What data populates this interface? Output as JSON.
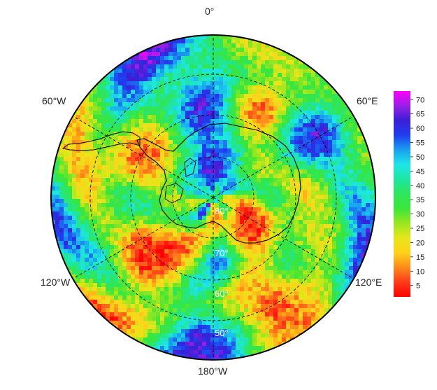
{
  "map": {
    "projection": "south-polar-stereographic",
    "longitude_labels": {
      "top": "0°",
      "upper_left": "60°W",
      "upper_right": "60°E",
      "lower_left": "120°W",
      "lower_right": "120°E",
      "bottom": "180°W"
    },
    "latitude_labels": [
      "80°",
      "70°",
      "60°",
      "50°"
    ],
    "graticule_latitudes": [
      80,
      70,
      60,
      50
    ],
    "graticule_longitudes_deg": [
      0,
      60,
      120,
      180,
      240,
      300
    ],
    "graticule_style": "dashed"
  },
  "colorbar": {
    "ticks": [
      "70",
      "65",
      "60",
      "55",
      "50",
      "45",
      "40",
      "35",
      "30",
      "25",
      "20",
      "15",
      "10",
      "5"
    ],
    "range": [
      1,
      73
    ],
    "colors_top_to_bottom": [
      "#ff00ff",
      "#9a1fe6",
      "#3b1fd6",
      "#1f3df0",
      "#1aa0f0",
      "#1ee6e6",
      "#1ee6a0",
      "#2ee65a",
      "#3ae63a",
      "#9ae61e",
      "#e6e61a",
      "#ffd21a",
      "#ff8a1a",
      "#ff3a1a",
      "#ff0000"
    ]
  },
  "colors": {
    "coastline": "#000000",
    "graticule": "#000000",
    "background": "#ffffff"
  }
}
